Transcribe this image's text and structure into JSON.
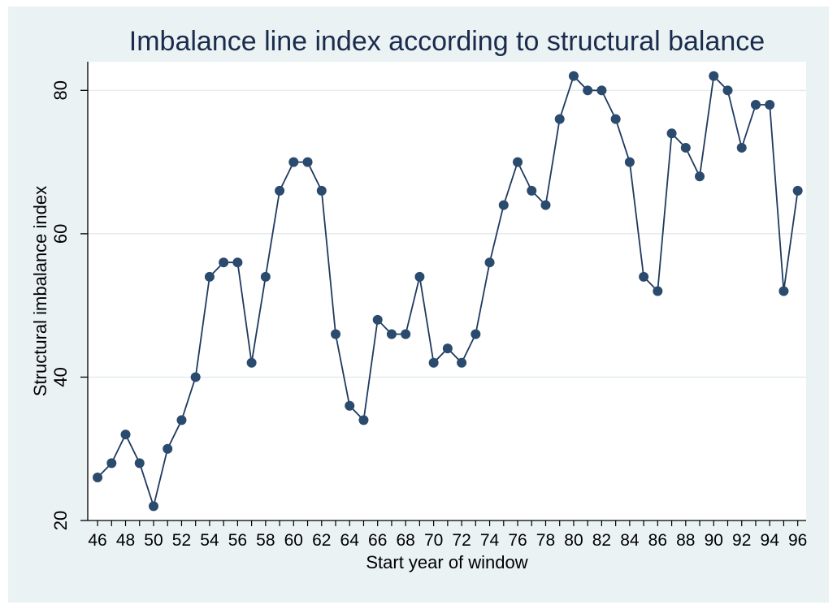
{
  "chart_data": {
    "type": "line",
    "title": "Imbalance line index according to structural balance",
    "xlabel": "Start year of window",
    "ylabel": "Structural imbalance index",
    "x": [
      46,
      47,
      48,
      49,
      50,
      51,
      52,
      53,
      54,
      55,
      56,
      57,
      58,
      59,
      60,
      61,
      62,
      63,
      64,
      65,
      66,
      67,
      68,
      69,
      70,
      71,
      72,
      73,
      74,
      75,
      76,
      77,
      78,
      79,
      80,
      81,
      82,
      83,
      84,
      85,
      86,
      87,
      88,
      89,
      90,
      91,
      92,
      93,
      94,
      95,
      96
    ],
    "y": [
      26,
      28,
      32,
      28,
      22,
      30,
      34,
      40,
      54,
      56,
      56,
      42,
      54,
      66,
      70,
      70,
      66,
      46,
      36,
      34,
      48,
      46,
      46,
      54,
      42,
      44,
      42,
      46,
      56,
      64,
      70,
      66,
      64,
      76,
      82,
      80,
      80,
      76,
      70,
      54,
      52,
      74,
      72,
      68,
      82,
      80,
      72,
      78,
      78,
      52,
      66
    ],
    "x_ticks": [
      "46",
      "48",
      "50",
      "52",
      "54",
      "56",
      "58",
      "60",
      "62",
      "64",
      "66",
      "68",
      "70",
      "72",
      "74",
      "76",
      "78",
      "80",
      "82",
      "84",
      "86",
      "88",
      "90",
      "92",
      "94",
      "96"
    ],
    "y_ticks": [
      "20",
      "40",
      "60",
      "80"
    ],
    "xlim": [
      45.3,
      96.6
    ],
    "ylim": [
      20,
      84
    ],
    "grid": true,
    "colors": {
      "line": "#1f3a5f",
      "marker": "#2a4a6e",
      "outer_background": "#eaf2f3",
      "plot_background": "#ffffff",
      "grid": "#e4ecee"
    }
  }
}
